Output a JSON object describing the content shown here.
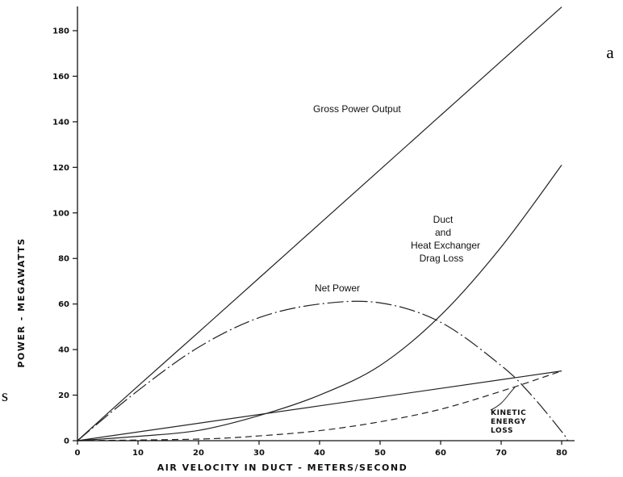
{
  "chart_data": {
    "type": "line",
    "xlabel": "AIR VELOCITY IN DUCT - METERS/SECOND",
    "ylabel": "POWER - MEGAWATTS",
    "xlim": [
      0,
      80
    ],
    "ylim": [
      0,
      180
    ],
    "x_ticks": [
      0,
      10,
      20,
      30,
      40,
      50,
      60,
      70,
      80
    ],
    "y_ticks": [
      0,
      20,
      40,
      60,
      80,
      100,
      120,
      140,
      160,
      180
    ],
    "grid": false,
    "series": [
      {
        "name": "Gross Power Output",
        "style": "solid",
        "x": [
          0,
          10,
          20,
          30,
          40,
          50,
          60,
          70,
          80
        ],
        "y": [
          0,
          24,
          47.6,
          71.4,
          95.2,
          119,
          142.8,
          166.6,
          190.4
        ]
      },
      {
        "name": "Duct and Heat Exchanger Drag Loss",
        "style": "solid",
        "x": [
          0,
          10,
          20,
          30,
          40,
          50,
          60,
          70,
          80
        ],
        "y": [
          0,
          1.9,
          4.5,
          11,
          20,
          33,
          55,
          85,
          121
        ]
      },
      {
        "name": "Net Power",
        "style": "dash-dot",
        "x": [
          0,
          10,
          20,
          30,
          40,
          50,
          60,
          70,
          75,
          80,
          81
        ],
        "y": [
          0,
          22,
          41,
          54,
          60,
          60.5,
          52,
          33,
          20,
          4,
          0
        ]
      },
      {
        "name": "KINETIC ENERGY LOSS",
        "style": "dashed",
        "x": [
          0,
          20,
          30,
          40,
          50,
          60,
          70,
          80
        ],
        "y": [
          0,
          0.7,
          2.1,
          4.4,
          8.3,
          13.8,
          21.7,
          30.6
        ]
      },
      {
        "name": "",
        "style": "solid",
        "x": [
          0,
          80
        ],
        "y": [
          0,
          30.6
        ]
      }
    ]
  },
  "labels": {
    "gross": "Gross Power Output",
    "drag_1": "Duct",
    "drag_2": "and",
    "drag_3": "Heat Exchanger",
    "drag_4": "Drag Loss",
    "net": "Net Power",
    "kinetic_1": "KINETIC",
    "kinetic_2": "ENERGY",
    "kinetic_3": "LOSS"
  },
  "edge_text": {
    "right": "a",
    "left": "s"
  }
}
